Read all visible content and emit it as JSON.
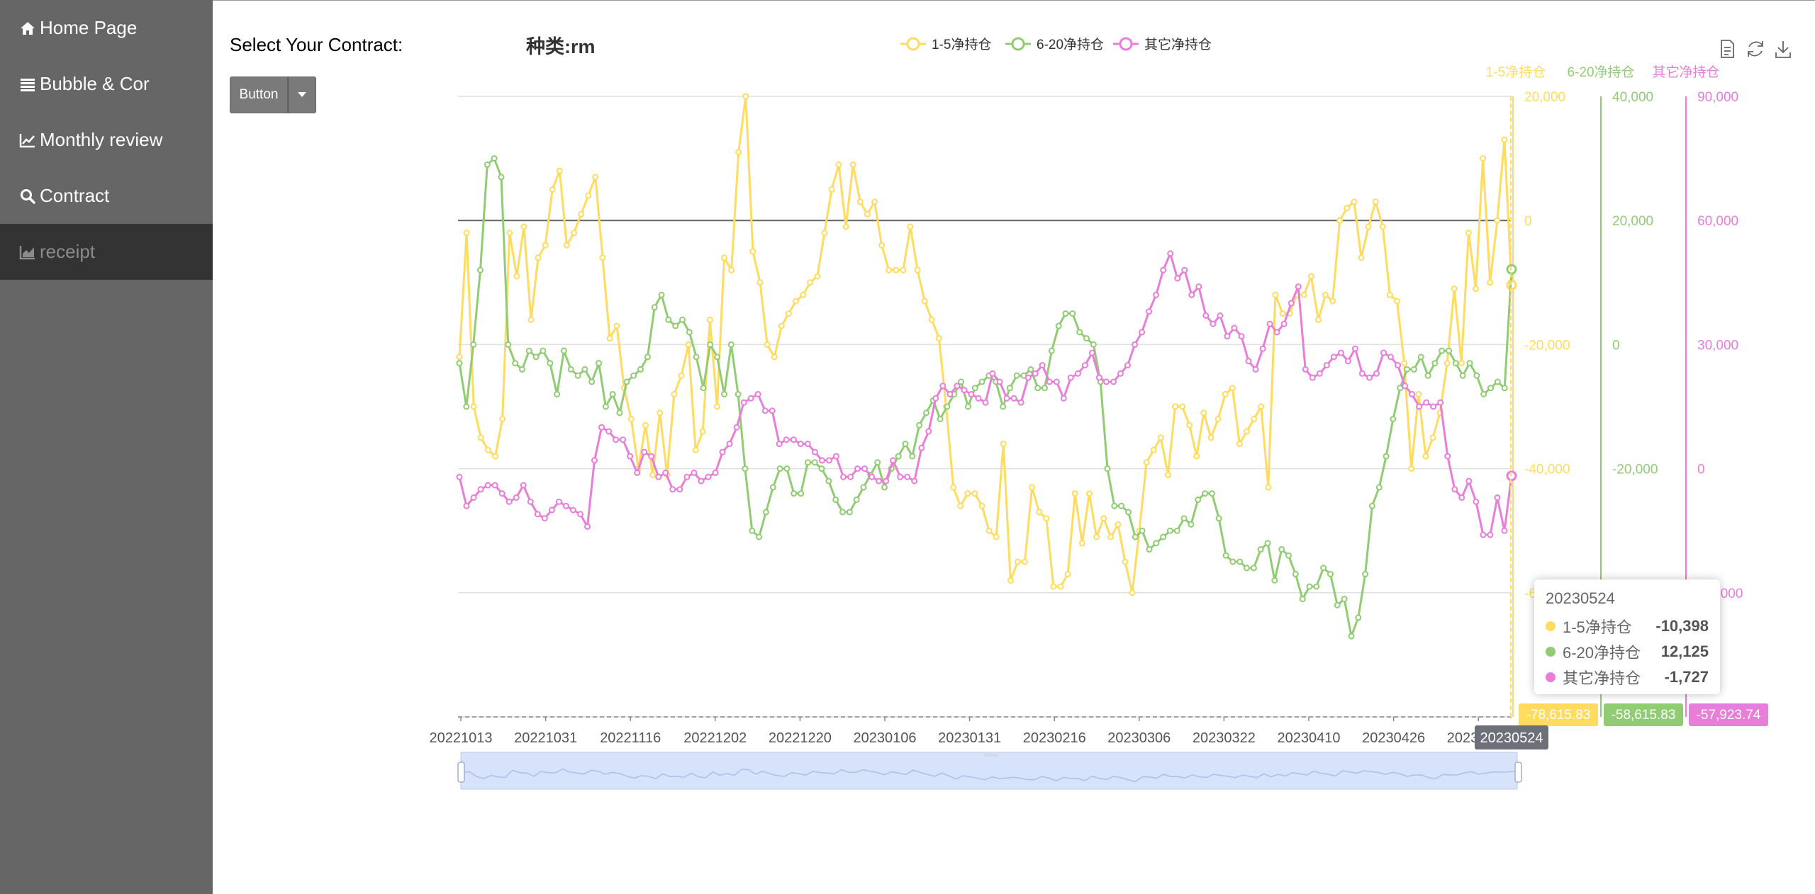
{
  "sidebar": {
    "items": [
      {
        "label": "Home Page",
        "icon": "home-icon"
      },
      {
        "label": "Bubble & Cor",
        "icon": "list-icon"
      },
      {
        "label": "Monthly review",
        "icon": "line-chart-icon"
      },
      {
        "label": "Contract",
        "icon": "search-icon"
      },
      {
        "label": "receipt",
        "icon": "area-chart-icon",
        "active": true
      }
    ]
  },
  "main": {
    "select_label": "Select Your Contract:",
    "button_label": "Button"
  },
  "chart_data": {
    "type": "line",
    "title": "种类:rm",
    "legend": [
      "1-5净持仓",
      "6-20净持仓",
      "其它净持仓"
    ],
    "colors": [
      "#ffdc60",
      "#91cc75",
      "#e97ed8"
    ],
    "x_tick_labels": [
      "20221013",
      "20221031",
      "20221116",
      "20221202",
      "20221220",
      "20230106",
      "20230131",
      "20230216",
      "20230306",
      "20230322",
      "20230410",
      "20230426",
      "20230512"
    ],
    "x_start": "20221013",
    "x_end": "20230524",
    "axes": [
      {
        "name": "1-5净持仓",
        "position": "right",
        "ticks": [
          "20,000",
          "0",
          "-20,000",
          "-40,000",
          "-60,000"
        ],
        "ylim": [
          -80000,
          20000
        ]
      },
      {
        "name": "6-20净持仓",
        "position": "right",
        "ticks": [
          "40,000",
          "20,000",
          "0",
          "-20,000",
          "-40,000"
        ],
        "ylim": [
          -60000,
          40000
        ]
      },
      {
        "name": "其它净持仓",
        "position": "right",
        "ticks": [
          "90,000",
          "60,000",
          "30,000",
          "0",
          "-30,000"
        ],
        "ylim": [
          -60000,
          90000
        ]
      }
    ],
    "series": [
      {
        "name": "1-5净持仓",
        "values": [
          -22000,
          -2000,
          -30000,
          -35000,
          -37000,
          -38000,
          -32000,
          -2000,
          -9000,
          -1000,
          -16000,
          -6000,
          -4000,
          5000,
          8000,
          -4000,
          -2000,
          1000,
          4000,
          7000,
          -6000,
          -19000,
          -17000,
          -27000,
          -32000,
          -40000,
          -33000,
          -41000,
          -31000,
          -41000,
          -28000,
          -25000,
          -20000,
          -37000,
          -34000,
          -16000,
          -30000,
          -6000,
          -8000,
          11000,
          20000,
          -5000,
          -10000,
          -20000,
          -22000,
          -17000,
          -15000,
          -13000,
          -12000,
          -10000,
          -9000,
          -2000,
          5000,
          9000,
          -1000,
          9000,
          3000,
          1000,
          3000,
          -4000,
          -8000,
          -8000,
          -8000,
          -1000,
          -8000,
          -13000,
          -16000,
          -19000,
          -30000,
          -43000,
          -46000,
          -44000,
          -44000,
          -46000,
          -50000,
          -51000,
          -36000,
          -58000,
          -55000,
          -55000,
          -43000,
          -47000,
          -48000,
          -59000,
          -59000,
          -57000,
          -44000,
          -52000,
          -44000,
          -51000,
          -48000,
          -51000,
          -49000,
          -55000,
          -60000,
          -50000,
          -39000,
          -37000,
          -35000,
          -41000,
          -30000,
          -30000,
          -33000,
          -38000,
          -31000,
          -35000,
          -32000,
          -28000,
          -27000,
          -36000,
          -34000,
          -32000,
          -30000,
          -43000,
          -12000,
          -15000,
          -15000,
          -12000,
          -12000,
          -9000,
          -16000,
          -12000,
          -13000,
          0,
          2000,
          3000,
          -6000,
          -1000,
          3000,
          -1000,
          -12000,
          -13000,
          -23000,
          -40000,
          -28000,
          -38000,
          -35000,
          -31000,
          -23000,
          -11000,
          -23000,
          -2000,
          -11000,
          10000,
          -10000,
          0,
          13000,
          -10398
        ]
      },
      {
        "name": "6-20净持仓",
        "values": [
          -3000,
          -10000,
          0,
          12000,
          29000,
          30000,
          27000,
          0,
          -3000,
          -4000,
          -1000,
          -2000,
          -1000,
          -3000,
          -8000,
          -1000,
          -4000,
          -5000,
          -4000,
          -6000,
          -3000,
          -10000,
          -8000,
          -11000,
          -6000,
          -5000,
          -4000,
          -2000,
          6000,
          8000,
          4000,
          3000,
          4000,
          2000,
          -2000,
          -7000,
          0,
          -2000,
          -8000,
          0,
          -8000,
          -20000,
          -30000,
          -31000,
          -27000,
          -23000,
          -20000,
          -20000,
          -24000,
          -24000,
          -19000,
          -19000,
          -20000,
          -22000,
          -25000,
          -27000,
          -27000,
          -25000,
          -23000,
          -21000,
          -19000,
          -23000,
          -20000,
          -18000,
          -16000,
          -18000,
          -13000,
          -11000,
          -9000,
          -12000,
          -10000,
          -8000,
          -6000,
          -10000,
          -7000,
          -6000,
          -5000,
          -6000,
          -10000,
          -7000,
          -5000,
          -5000,
          -4000,
          -7000,
          -7000,
          -1000,
          3000,
          5000,
          5000,
          2000,
          1000,
          0,
          -6000,
          -20000,
          -26000,
          -26000,
          -27000,
          -31000,
          -30000,
          -33000,
          -32000,
          -31000,
          -30000,
          -30000,
          -28000,
          -29000,
          -25000,
          -24000,
          -24000,
          -28000,
          -34000,
          -35000,
          -35000,
          -36000,
          -36000,
          -33000,
          -32000,
          -38000,
          -33000,
          -34000,
          -37000,
          -41000,
          -39000,
          -39000,
          -36000,
          -37000,
          -42000,
          -41000,
          -47000,
          -44000,
          -37000,
          -26000,
          -23000,
          -18000,
          -12000,
          -7000,
          -4000,
          -4000,
          -2000,
          -5000,
          -3000,
          -1000,
          -1000,
          -3000,
          -5000,
          -3000,
          -5000,
          -8000,
          -7000,
          -6000,
          -7000,
          12125
        ]
      },
      {
        "name": "其它净持仓",
        "values": [
          -2000,
          -9000,
          -7000,
          -5000,
          -4000,
          -4000,
          -6000,
          -8000,
          -7000,
          -4000,
          -8000,
          -11000,
          -12000,
          -10000,
          -8000,
          -9000,
          -10000,
          -11000,
          -14000,
          2000,
          10000,
          9000,
          7000,
          7000,
          3000,
          -1000,
          4000,
          3000,
          -2000,
          -1000,
          -5000,
          -5000,
          -2000,
          -1000,
          -3000,
          -2000,
          -1000,
          4000,
          6000,
          10000,
          16000,
          17000,
          18000,
          14000,
          14000,
          6000,
          7000,
          7000,
          6000,
          6000,
          4000,
          2000,
          2000,
          3000,
          -2000,
          -2000,
          0,
          0,
          -2000,
          -3000,
          -3000,
          2000,
          -2000,
          -2000,
          -3000,
          5000,
          9000,
          17000,
          20000,
          18000,
          20000,
          19000,
          18000,
          17000,
          16000,
          23000,
          21000,
          17000,
          17000,
          16000,
          22000,
          23000,
          25000,
          21000,
          21000,
          17000,
          22000,
          23000,
          25000,
          28000,
          22000,
          21000,
          21000,
          23000,
          25000,
          30000,
          33000,
          38000,
          42000,
          48000,
          52000,
          46000,
          48000,
          42000,
          44000,
          37000,
          35000,
          37000,
          32000,
          34000,
          32000,
          26000,
          24000,
          29000,
          35000,
          33000,
          35000,
          40000,
          44000,
          24000,
          22000,
          23000,
          25000,
          27000,
          28000,
          26000,
          29000,
          23000,
          22000,
          23000,
          28000,
          27000,
          25000,
          20000,
          18000,
          15000,
          16000,
          15000,
          16000,
          3000,
          -5000,
          -7000,
          -3000,
          -8000,
          -16000,
          -16000,
          -7000,
          -15000,
          -1727
        ]
      }
    ],
    "axis_pointer": {
      "x_label": "20230524",
      "y_labels": [
        "-78,615.83",
        "-58,615.83",
        "-57,923.74"
      ]
    },
    "tooltip": {
      "title": "20230524",
      "rows": [
        {
          "name": "1-5净持仓",
          "value": "-10,398"
        },
        {
          "name": "6-20净持仓",
          "value": "12,125"
        },
        {
          "name": "其它净持仓",
          "value": "-1,727"
        }
      ]
    },
    "toolbox": [
      "data-view-icon",
      "restore-icon",
      "save-image-icon"
    ]
  }
}
